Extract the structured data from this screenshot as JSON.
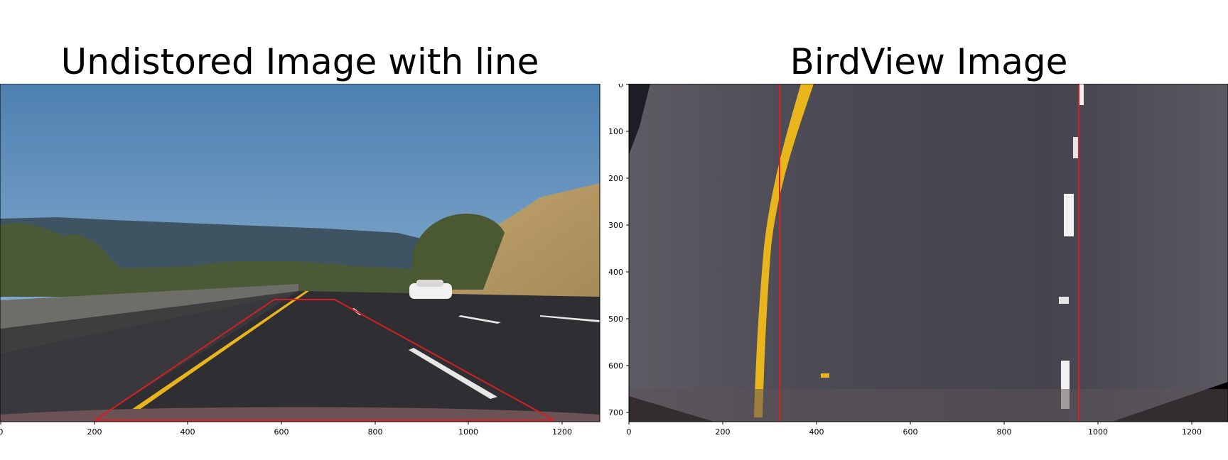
{
  "figure": {
    "left": {
      "title": "Undistored Image with line",
      "x_ticks": [
        "0",
        "200",
        "400",
        "600",
        "800",
        "1000",
        "1200"
      ],
      "image_size": [
        1280,
        720
      ],
      "polygon": [
        [
          210,
          720
        ],
        [
          595,
          460
        ],
        [
          725,
          460
        ],
        [
          1180,
          720
        ]
      ],
      "polygon_color": "#d42020",
      "lane_color": "#e8b51c"
    },
    "right": {
      "title": "BirdView Image",
      "x_ticks": [
        "0",
        "200",
        "400",
        "600",
        "800",
        "1000",
        "1200"
      ],
      "y_ticks": [
        "0",
        "100",
        "200",
        "300",
        "400",
        "500",
        "600",
        "700"
      ],
      "image_size": [
        1280,
        720
      ],
      "vertical_lines_x": [
        320,
        960
      ],
      "line_color": "#d42020",
      "lane_color": "#e8b51c"
    }
  }
}
